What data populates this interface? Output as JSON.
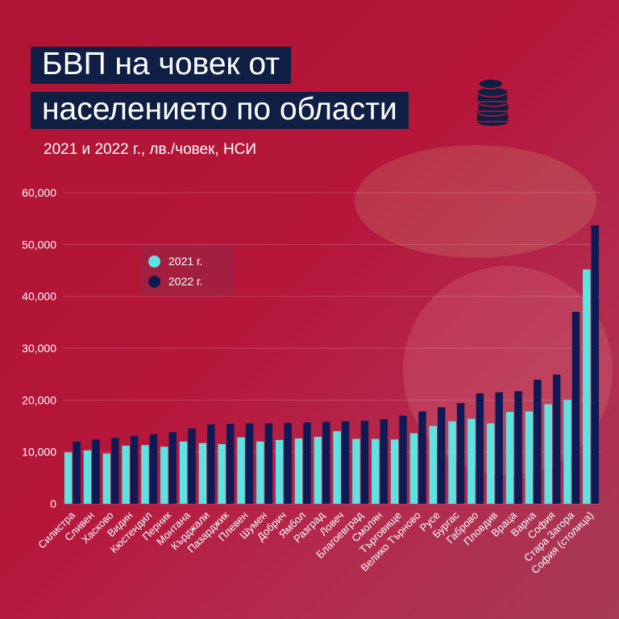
{
  "title_line1": "БВП на човек от",
  "title_line2": "населението по области",
  "subtitle": "2021 и 2022 г., лв./човек, НСИ",
  "colors": {
    "series_2021": "#5ee3e3",
    "series_2022": "#0f1a55",
    "title_bg": "#0f1f44"
  },
  "chart_data": {
    "type": "bar",
    "ylim": [
      0,
      60000
    ],
    "yticks": [
      "0",
      "10,000",
      "20,000",
      "30,000",
      "40,000",
      "50,000",
      "60,000"
    ],
    "ytick_values": [
      0,
      10000,
      20000,
      30000,
      40000,
      50000,
      60000
    ],
    "categories": [
      "Силистра",
      "Сливен",
      "Хасково",
      "Видин",
      "Кюстендил",
      "Перник",
      "Монтана",
      "Кърджали",
      "Пазарджик",
      "Плевен",
      "Шумен",
      "Добрич",
      "Ямбол",
      "Разград",
      "Ловеч",
      "Благоевград",
      "Смолян",
      "Търговище",
      "Велико Търново",
      "Русе",
      "Бургас",
      "Габрово",
      "Пловдив",
      "Враца",
      "Варна",
      "София",
      "Стара Загора",
      "София (столица)"
    ],
    "series": [
      {
        "name": "2021 г.",
        "values": [
          9900,
          10300,
          9700,
          11200,
          11300,
          11000,
          12000,
          11700,
          11500,
          12800,
          12000,
          12300,
          12600,
          12900,
          14000,
          12500,
          12500,
          12400,
          13600,
          15000,
          15900,
          16400,
          15500,
          17700,
          17800,
          19200,
          20000,
          45200
        ]
      },
      {
        "name": "2022 г.",
        "values": [
          12000,
          12400,
          12700,
          13100,
          13400,
          13800,
          14500,
          15300,
          15400,
          15500,
          15500,
          15600,
          15700,
          15800,
          15900,
          16000,
          16300,
          17000,
          17800,
          18600,
          19400,
          21300,
          21500,
          21700,
          23900,
          24900,
          37000,
          53700
        ]
      }
    ]
  }
}
